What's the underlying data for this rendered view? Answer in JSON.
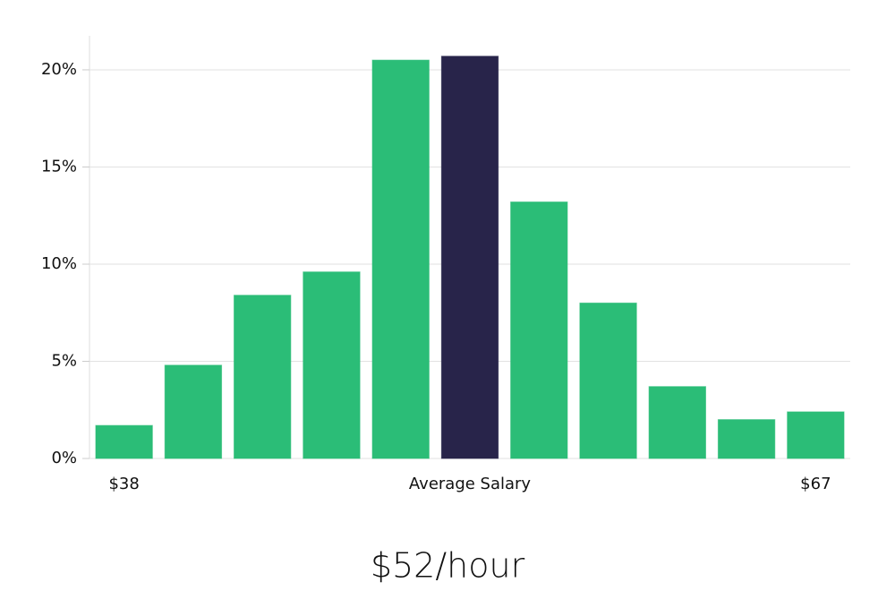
{
  "chart_data": {
    "type": "bar",
    "subtitle": "$52/hour",
    "categories": [
      "$38",
      null,
      null,
      null,
      null,
      "Average Salary",
      null,
      null,
      null,
      null,
      "$67"
    ],
    "values": [
      1.7,
      4.8,
      8.4,
      9.6,
      20.5,
      20.7,
      13.2,
      8.0,
      3.7,
      2.0,
      2.4
    ],
    "colors": [
      "#2bbd77",
      "#2bbd77",
      "#2bbd77",
      "#2bbd77",
      "#2bbd77",
      "#28244a",
      "#2bbd77",
      "#2bbd77",
      "#2bbd77",
      "#2bbd77",
      "#2bbd77"
    ],
    "ylim": [
      0,
      21.75
    ],
    "yticks": [
      {
        "value": 0,
        "label": "0%"
      },
      {
        "value": 5,
        "label": "5%"
      },
      {
        "value": 10,
        "label": "10%"
      },
      {
        "value": 15,
        "label": "15%"
      },
      {
        "value": 20,
        "label": "20%"
      }
    ],
    "grid": true
  }
}
